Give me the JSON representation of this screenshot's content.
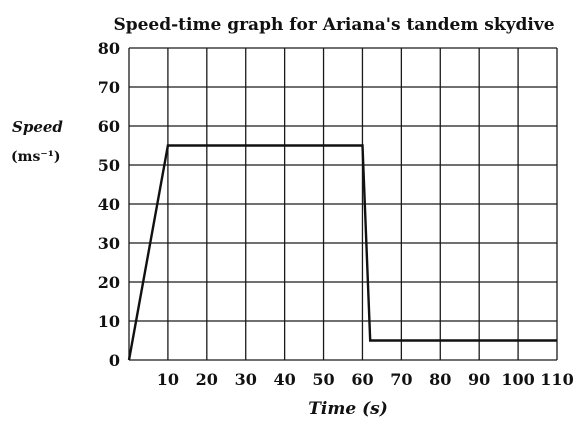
{
  "chart_data": {
    "type": "line",
    "title": "Speed-time graph for Ariana's tandem skydive",
    "xlabel": "Time (s)",
    "ylabel": "Speed",
    "ylabel_unit": "(ms⁻¹)",
    "xlim": [
      0,
      110
    ],
    "ylim": [
      0,
      80
    ],
    "x_ticks": [
      10,
      20,
      30,
      40,
      50,
      60,
      70,
      80,
      90,
      100,
      110
    ],
    "y_ticks": [
      0,
      10,
      20,
      30,
      40,
      50,
      60,
      70,
      80
    ],
    "y_tick_labels": [
      "0",
      "10",
      "20",
      "30",
      "40",
      "50",
      "60",
      "70",
      "80"
    ],
    "grid": true,
    "series": [
      {
        "x": [
          0,
          10,
          60,
          62,
          110
        ],
        "y": [
          0,
          55,
          55,
          5,
          5
        ]
      }
    ]
  }
}
